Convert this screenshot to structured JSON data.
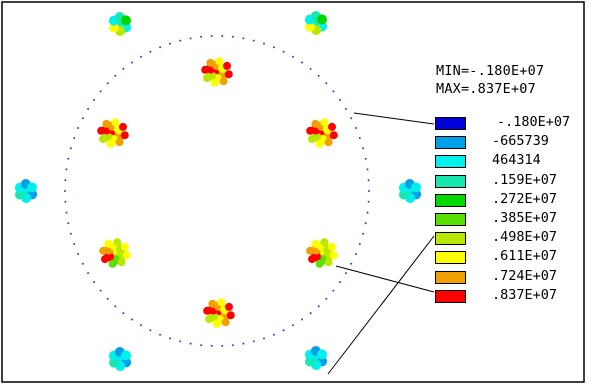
{
  "min_label": "MIN=-.180E+07",
  "max_label": "MAX=.837E+07",
  "legend": [
    {
      "label": "-.180E+07",
      "color": "#0000d8"
    },
    {
      "label": "-665739",
      "color": "#00a0e8"
    },
    {
      "label": "464314",
      "color": "#00f0ee"
    },
    {
      "label": ".159E+07",
      "color": "#18e8b0"
    },
    {
      "label": ".272E+07",
      "color": "#00d800"
    },
    {
      "label": ".385E+07",
      "color": "#58e000"
    },
    {
      "label": ".498E+07",
      "color": "#b8e800"
    },
    {
      "label": ".611E+07",
      "color": "#ffff00"
    },
    {
      "label": ".724E+07",
      "color": "#f0a000"
    },
    {
      "label": ".837E+07",
      "color": "#ff0000"
    }
  ],
  "ring_dot_color": "#3a3ad8",
  "frame_color": "#000000"
}
